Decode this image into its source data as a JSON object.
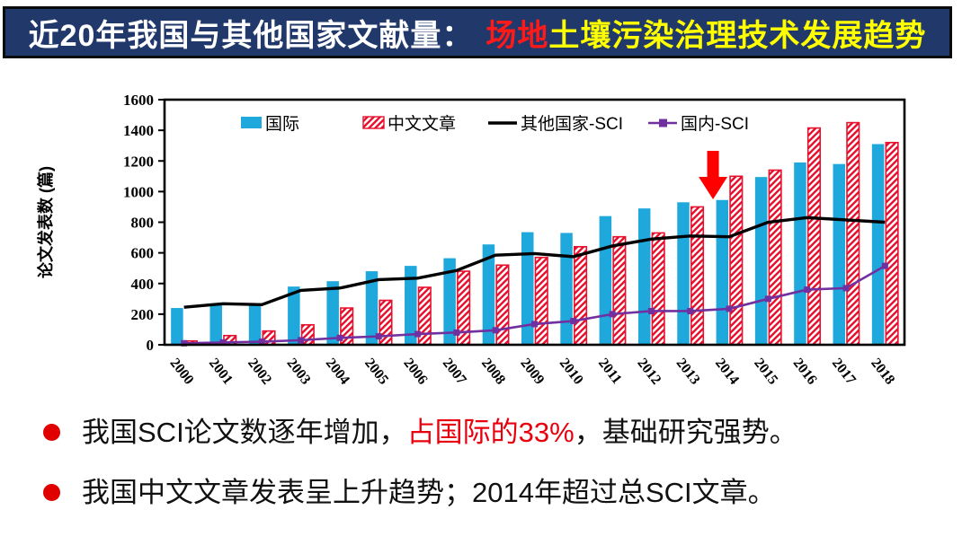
{
  "title": {
    "part_white": "近20年我国与其他国家文献量：",
    "part_red": "场地",
    "part_yellow": "土壤污染治理技术发展趋势"
  },
  "colors": {
    "title_bar_bg": "#21386B",
    "title_red": "#ff1a1a",
    "title_yellow": "#ffff00",
    "bar_blue": "#1FA8DC",
    "bar_red": "#E8112D",
    "line_black": "#000000",
    "line_purple": "#7030A0",
    "arrow_red": "#FF0000",
    "bullet_dot": "#E00000"
  },
  "chart_data": {
    "type": "bar",
    "subtype": "bar-line-combo",
    "categories": [
      2000,
      2001,
      2002,
      2003,
      2004,
      2005,
      2006,
      2007,
      2008,
      2009,
      2010,
      2011,
      2012,
      2013,
      2014,
      2015,
      2016,
      2017,
      2018
    ],
    "series": [
      {
        "name": "国际",
        "kind": "bar",
        "style": "solid",
        "color": "#1FA8DC",
        "values": [
          240,
          265,
          265,
          380,
          415,
          480,
          515,
          565,
          655,
          735,
          730,
          840,
          890,
          930,
          945,
          1095,
          1190,
          1180,
          1310
        ]
      },
      {
        "name": "中文文章",
        "kind": "bar",
        "style": "hatched",
        "color": "#E8112D",
        "values": [
          25,
          60,
          90,
          130,
          240,
          290,
          375,
          480,
          520,
          570,
          640,
          705,
          730,
          900,
          1100,
          1140,
          1415,
          1450,
          1320
        ]
      },
      {
        "name": "其他国家-SCI",
        "kind": "line",
        "marker": "none",
        "color": "#000000",
        "values": [
          245,
          268,
          262,
          355,
          370,
          425,
          435,
          485,
          585,
          595,
          575,
          645,
          690,
          710,
          705,
          800,
          830,
          815,
          800
        ]
      },
      {
        "name": "国内-SCI",
        "kind": "line",
        "marker": "square",
        "color": "#7030A0",
        "values": [
          10,
          15,
          20,
          30,
          45,
          55,
          70,
          80,
          95,
          135,
          155,
          200,
          220,
          220,
          235,
          300,
          360,
          370,
          515
        ]
      }
    ],
    "ylabel": "论文发表数 (篇)",
    "xlabel": "",
    "ylim": [
      0,
      1600
    ],
    "ytick_step": 200,
    "grid": false,
    "legend_position": "top-inside",
    "annotation": {
      "type": "down-arrow",
      "year": 2014,
      "color": "#FF0000"
    }
  },
  "bullets": [
    {
      "seg1": "我国SCI论文数逐年增加，",
      "seg2": "占国际的33%",
      "seg3": "，基础研究强势。"
    },
    {
      "seg1": "我国中文文章发表呈上升趋势；2014年超过总SCI文章。"
    }
  ]
}
